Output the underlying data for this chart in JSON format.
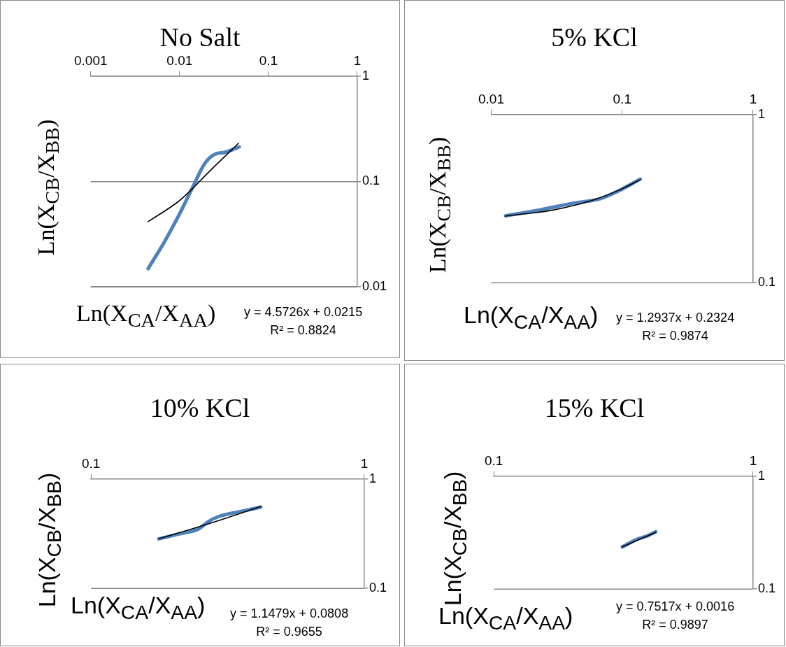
{
  "chart_data": [
    {
      "type": "line",
      "title": "No Salt",
      "xlabel": "Ln(X$_{CA}$/X$_{AA}$)",
      "ylabel": "Ln(X$_{CB}$/X$_{BB}$)",
      "log": "xy",
      "xlim": [
        0.001,
        1
      ],
      "xticks": [
        0.001,
        0.01,
        0.1,
        1
      ],
      "ylim": [
        0.01,
        1
      ],
      "yticks": [
        0.01,
        0.1,
        1
      ],
      "grid": "y",
      "legend": false,
      "marker": "none",
      "line_style": "solid",
      "series": [
        {
          "color": "#4f81bd",
          "x": [
            0.00442,
            0.00682,
            0.00982,
            0.0141,
            0.0191,
            0.0244,
            0.033,
            0.0469
          ],
          "values": [
            0.0149,
            0.0272,
            0.0479,
            0.0889,
            0.1475,
            0.1796,
            0.19,
            0.213
          ]
        },
        {
          "type": "line",
          "color": "#000000",
          "x": [
            0.00442,
            0.00982,
            0.0141,
            0.0216,
            0.0461
          ],
          "values": [
            0.0416,
            0.0652,
            0.0864,
            0.1245,
            0.231
          ]
        }
      ],
      "annotations": [
        "y = 4.5726x + 0.0215",
        "R² = 0.8824"
      ]
    },
    {
      "type": "line",
      "title": "5% KCl",
      "xlabel": "Ln(X$_{CA}$/X$_{AA}$)",
      "ylabel": "Ln(X$_{CB}$/X$_{BB}$)",
      "log": "xy",
      "xlim": [
        0.01,
        1
      ],
      "xticks": [
        0.01,
        0.1,
        1
      ],
      "ylim": [
        0.1,
        1
      ],
      "yticks": [
        0.1,
        1
      ],
      "legend": false,
      "marker": "none",
      "line_style": "solid",
      "series": [
        {
          "color": "#4f81bd",
          "x": [
            0.01285,
            0.0226,
            0.0413,
            0.0671,
            0.0927,
            0.1374
          ],
          "values": [
            0.2497,
            0.2694,
            0.296,
            0.315,
            0.35,
            0.413
          ]
        },
        {
          "type": "line",
          "color": "#000000",
          "x": [
            0.01285,
            0.03,
            0.06,
            0.1,
            0.1374
          ],
          "values": [
            0.249,
            0.271,
            0.31,
            0.362,
            0.41
          ]
        }
      ],
      "annotations": [
        "y = 1.2937x + 0.2324",
        "R² = 0.9874"
      ]
    },
    {
      "type": "line",
      "title": "10% KCl",
      "xlabel": "Ln(X$_{CA}$/X$_{AA}$)",
      "ylabel": "Ln(X$_{CB}$/X$_{BB}$)",
      "log": "xy",
      "xlim": [
        0.1,
        1
      ],
      "xticks": [
        0.1,
        1
      ],
      "ylim": [
        0.1,
        1
      ],
      "yticks": [
        0.1,
        1
      ],
      "legend": false,
      "marker": "none",
      "line_style": "solid",
      "series": [
        {
          "color": "#4f81bd",
          "x": [
            0.177,
            0.206,
            0.248,
            0.269,
            0.292,
            0.352,
            0.418
          ],
          "values": [
            0.2834,
            0.311,
            0.351,
            0.409,
            0.452,
            0.504,
            0.553
          ]
        },
        {
          "type": "line",
          "color": "#000000",
          "x": [
            0.177,
            0.25,
            0.3,
            0.35,
            0.418
          ],
          "values": [
            0.284,
            0.368,
            0.425,
            0.483,
            0.561
          ]
        }
      ],
      "annotations": [
        "y = 1.1479x + 0.0808",
        "R² = 0.9655"
      ]
    },
    {
      "type": "line",
      "title": "15% KCl",
      "xlabel": "Ln(X$_{CA}$/X$_{AA}$)",
      "ylabel": "Ln(X$_{CB}$/X$_{BB}$)",
      "log": "xy",
      "xlim": [
        0.1,
        1
      ],
      "xticks": [
        0.1,
        1
      ],
      "ylim": [
        0.1,
        1
      ],
      "yticks": [
        0.1,
        1
      ],
      "legend": false,
      "marker": "none",
      "line_style": "solid",
      "series": [
        {
          "color": "#4f81bd",
          "x": [
            0.313,
            0.355,
            0.394,
            0.421
          ],
          "values": [
            0.236,
            0.275,
            0.298,
            0.322
          ]
        },
        {
          "type": "line",
          "color": "#000000",
          "x": [
            0.313,
            0.36,
            0.421
          ],
          "values": [
            0.237,
            0.272,
            0.318
          ]
        }
      ],
      "annotations": [
        "y = 0.7517x + 0.0016",
        "R² = 0.9897"
      ]
    }
  ]
}
